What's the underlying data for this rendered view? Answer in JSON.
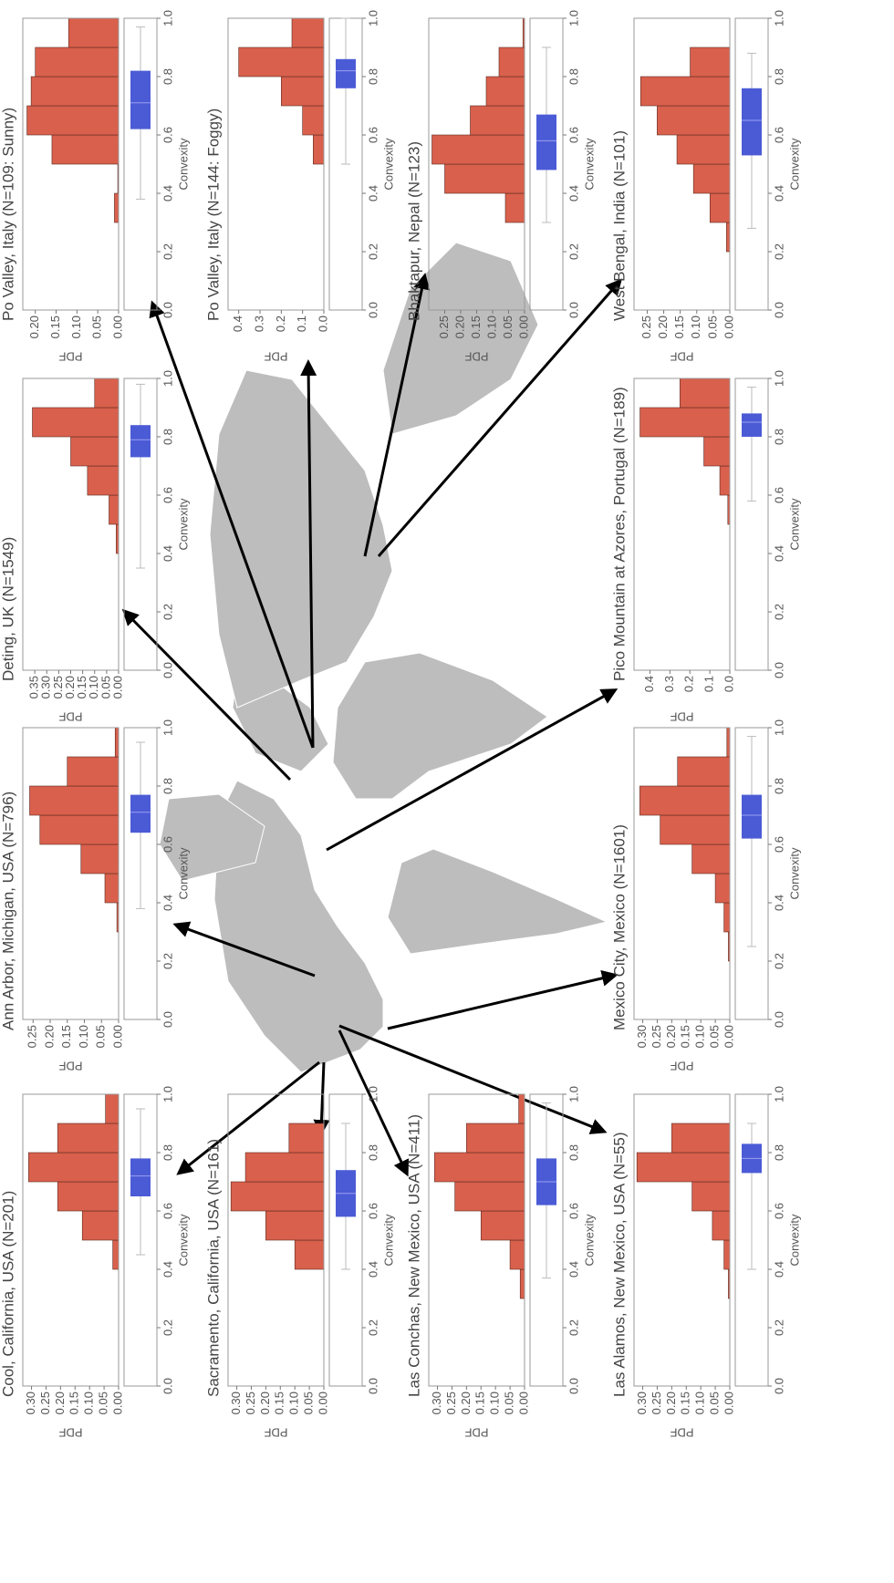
{
  "chart_data": [
    {
      "type": "histogram",
      "title": "Cool, California, USA (N=201)",
      "xlabel": "Convexity",
      "ylabel": "PDF",
      "color": "#d9604c",
      "box_color": "#4b5bd6",
      "bins": [
        0,
        0.1,
        0.2,
        0.3,
        0.4,
        0.5,
        0.6,
        0.7,
        0.8,
        0.9,
        1
      ],
      "values": [
        0,
        0,
        0,
        0,
        0.02,
        0.125,
        0.21,
        0.31,
        0.21,
        0.045
      ],
      "box": {
        "whislo": 0.45,
        "q1": 0.65,
        "med": 0.72,
        "q3": 0.78,
        "whishi": 0.95
      },
      "xlim": [
        0,
        1
      ],
      "xticks": [
        {
          "value": 0,
          "label": "0.0"
        },
        {
          "value": 0.2,
          "label": "0.2"
        },
        {
          "value": 0.4,
          "label": "0.4"
        },
        {
          "value": 0.6,
          "label": "0.6"
        },
        {
          "value": 0.8,
          "label": "0.8"
        },
        {
          "value": 1,
          "label": "1.0"
        }
      ],
      "ylim": [
        0,
        0.33
      ],
      "yticks": [
        {
          "value": 0,
          "label": "0.00"
        },
        {
          "value": 0.05,
          "label": "0.05"
        },
        {
          "value": 0.1,
          "label": "0.10"
        },
        {
          "value": 0.15,
          "label": "0.15"
        },
        {
          "value": 0.2,
          "label": "0.20"
        },
        {
          "value": 0.25,
          "label": "0.25"
        },
        {
          "value": 0.3,
          "label": "0.30"
        }
      ]
    },
    {
      "type": "histogram",
      "title": "Ann Arbor, Michigan, USA (N=796)",
      "xlabel": "Convexity",
      "ylabel": "PDF",
      "color": "#d9604c",
      "box_color": "#4b5bd6",
      "bins": [
        0,
        0.1,
        0.2,
        0.3,
        0.4,
        0.5,
        0.6,
        0.7,
        0.8,
        0.9,
        1
      ],
      "values": [
        0,
        0,
        0,
        0.005,
        0.04,
        0.11,
        0.23,
        0.26,
        0.15,
        0.01
      ],
      "box": {
        "whislo": 0.38,
        "q1": 0.64,
        "med": 0.71,
        "q3": 0.77,
        "whishi": 0.95
      },
      "xlim": [
        0,
        1
      ],
      "xticks": [
        {
          "value": 0,
          "label": "0.0"
        },
        {
          "value": 0.2,
          "label": "0.2"
        },
        {
          "value": 0.4,
          "label": "0.4"
        },
        {
          "value": 0.6,
          "label": "0.6"
        },
        {
          "value": 0.8,
          "label": "0.8"
        },
        {
          "value": 1,
          "label": "1.0"
        }
      ],
      "ylim": [
        0,
        0.28
      ],
      "yticks": [
        {
          "value": 0,
          "label": "0.00"
        },
        {
          "value": 0.05,
          "label": "0.05"
        },
        {
          "value": 0.1,
          "label": "0.10"
        },
        {
          "value": 0.15,
          "label": "0.15"
        },
        {
          "value": 0.2,
          "label": "0.20"
        },
        {
          "value": 0.25,
          "label": "0.25"
        }
      ]
    },
    {
      "type": "histogram",
      "title": "Deting, UK (N=1549)",
      "xlabel": "Convexity",
      "ylabel": "PDF",
      "color": "#d9604c",
      "box_color": "#4b5bd6",
      "bins": [
        0,
        0.1,
        0.2,
        0.3,
        0.4,
        0.5,
        0.6,
        0.7,
        0.8,
        0.9,
        1
      ],
      "values": [
        0,
        0,
        0,
        0,
        0.01,
        0.04,
        0.13,
        0.2,
        0.36,
        0.1
      ],
      "box": {
        "whislo": 0.35,
        "q1": 0.73,
        "med": 0.79,
        "q3": 0.84,
        "whishi": 0.98
      },
      "xlim": [
        0,
        1
      ],
      "xticks": [
        {
          "value": 0,
          "label": "0.0"
        },
        {
          "value": 0.2,
          "label": "0.2"
        },
        {
          "value": 0.4,
          "label": "0.4"
        },
        {
          "value": 0.6,
          "label": "0.6"
        },
        {
          "value": 0.8,
          "label": "0.8"
        },
        {
          "value": 1,
          "label": "1.0"
        }
      ],
      "ylim": [
        0,
        0.4
      ],
      "yticks": [
        {
          "value": 0,
          "label": "0.00"
        },
        {
          "value": 0.05,
          "label": "0.05"
        },
        {
          "value": 0.1,
          "label": "0.10"
        },
        {
          "value": 0.15,
          "label": "0.15"
        },
        {
          "value": 0.2,
          "label": "0.20"
        },
        {
          "value": 0.25,
          "label": "0.25"
        },
        {
          "value": 0.3,
          "label": "0.30"
        },
        {
          "value": 0.35,
          "label": "0.35"
        }
      ]
    },
    {
      "type": "histogram",
      "title": "Po Valley, Italy (N=109: Sunny)",
      "xlabel": "Convexity",
      "ylabel": "PDF",
      "color": "#d9604c",
      "box_color": "#4b5bd6",
      "bins": [
        0,
        0.1,
        0.2,
        0.3,
        0.4,
        0.5,
        0.6,
        0.7,
        0.8,
        0.9,
        1
      ],
      "values": [
        0,
        0,
        0,
        0.01,
        0.002,
        0.16,
        0.22,
        0.21,
        0.2,
        0.12
      ],
      "box": {
        "whislo": 0.38,
        "q1": 0.62,
        "med": 0.71,
        "q3": 0.82,
        "whishi": 0.97
      },
      "xlim": [
        0,
        1
      ],
      "xticks": [
        {
          "value": 0,
          "label": "0.0"
        },
        {
          "value": 0.2,
          "label": "0.2"
        },
        {
          "value": 0.4,
          "label": "0.4"
        },
        {
          "value": 0.6,
          "label": "0.6"
        },
        {
          "value": 0.8,
          "label": "0.8"
        },
        {
          "value": 1,
          "label": "1.0"
        }
      ],
      "ylim": [
        0,
        0.23
      ],
      "yticks": [
        {
          "value": 0,
          "label": "0.00"
        },
        {
          "value": 0.05,
          "label": "0.05"
        },
        {
          "value": 0.1,
          "label": "0.10"
        },
        {
          "value": 0.15,
          "label": "0.15"
        },
        {
          "value": 0.2,
          "label": "0.20"
        }
      ]
    },
    {
      "type": "histogram",
      "title": "Sacramento, California, USA (N=161)",
      "xlabel": "Convexity",
      "ylabel": "PDF",
      "color": "#d9604c",
      "box_color": "#4b5bd6",
      "bins": [
        0,
        0.1,
        0.2,
        0.3,
        0.4,
        0.5,
        0.6,
        0.7,
        0.8,
        0.9,
        1
      ],
      "values": [
        0,
        0,
        0,
        0,
        0.1,
        0.2,
        0.32,
        0.27,
        0.12,
        0
      ],
      "box": {
        "whislo": 0.4,
        "q1": 0.58,
        "med": 0.66,
        "q3": 0.74,
        "whishi": 0.9
      },
      "xlim": [
        0,
        1
      ],
      "xticks": [
        {
          "value": 0,
          "label": "0.0"
        },
        {
          "value": 0.2,
          "label": "0.2"
        },
        {
          "value": 0.4,
          "label": "0.4"
        },
        {
          "value": 0.6,
          "label": "0.6"
        },
        {
          "value": 0.8,
          "label": "0.8"
        },
        {
          "value": 1,
          "label": "1.0"
        }
      ],
      "ylim": [
        0,
        0.33
      ],
      "yticks": [
        {
          "value": 0,
          "label": "0.00"
        },
        {
          "value": 0.05,
          "label": "0.05"
        },
        {
          "value": 0.1,
          "label": "0.10"
        },
        {
          "value": 0.15,
          "label": "0.15"
        },
        {
          "value": 0.2,
          "label": "0.20"
        },
        {
          "value": 0.25,
          "label": "0.25"
        },
        {
          "value": 0.3,
          "label": "0.30"
        }
      ]
    },
    {
      "type": "histogram",
      "title": "Po Valley, Italy (N=144: Foggy)",
      "xlabel": "Convexity",
      "ylabel": "PDF",
      "color": "#d9604c",
      "box_color": "#4b5bd6",
      "bins": [
        0,
        0.1,
        0.2,
        0.3,
        0.4,
        0.5,
        0.6,
        0.7,
        0.8,
        0.9,
        1
      ],
      "values": [
        0,
        0,
        0,
        0,
        0,
        0.05,
        0.1,
        0.2,
        0.4,
        0.15
      ],
      "box": {
        "whislo": 0.5,
        "q1": 0.76,
        "med": 0.82,
        "q3": 0.86,
        "whishi": 1
      },
      "xlim": [
        0,
        1
      ],
      "xticks": [
        {
          "value": 0,
          "label": "0.0"
        },
        {
          "value": 0.2,
          "label": "0.2"
        },
        {
          "value": 0.4,
          "label": "0.4"
        },
        {
          "value": 0.6,
          "label": "0.6"
        },
        {
          "value": 0.8,
          "label": "0.8"
        },
        {
          "value": 1,
          "label": "1.0"
        }
      ],
      "ylim": [
        0,
        0.45
      ],
      "yticks": [
        {
          "value": 0,
          "label": "0.0"
        },
        {
          "value": 0.1,
          "label": "0.1"
        },
        {
          "value": 0.2,
          "label": "0.2"
        },
        {
          "value": 0.3,
          "label": "0.3"
        },
        {
          "value": 0.4,
          "label": "0.4"
        }
      ]
    },
    {
      "type": "histogram",
      "title": "Las Conchas, New Mexico, USA (N=411)",
      "xlabel": "Convexity",
      "ylabel": "PDF",
      "color": "#d9604c",
      "box_color": "#4b5bd6",
      "bins": [
        0,
        0.1,
        0.2,
        0.3,
        0.4,
        0.5,
        0.6,
        0.7,
        0.8,
        0.9,
        1
      ],
      "values": [
        0,
        0,
        0,
        0.015,
        0.05,
        0.15,
        0.24,
        0.31,
        0.2,
        0.02
      ],
      "box": {
        "whislo": 0.37,
        "q1": 0.62,
        "med": 0.7,
        "q3": 0.78,
        "whishi": 0.97
      },
      "xlim": [
        0,
        1
      ],
      "xticks": [
        {
          "value": 0,
          "label": "0.0"
        },
        {
          "value": 0.2,
          "label": "0.2"
        },
        {
          "value": 0.4,
          "label": "0.4"
        },
        {
          "value": 0.6,
          "label": "0.6"
        },
        {
          "value": 0.8,
          "label": "0.8"
        },
        {
          "value": 1,
          "label": "1.0"
        }
      ],
      "ylim": [
        0,
        0.33
      ],
      "yticks": [
        {
          "value": 0,
          "label": "0.00"
        },
        {
          "value": 0.05,
          "label": "0.05"
        },
        {
          "value": 0.1,
          "label": "0.10"
        },
        {
          "value": 0.15,
          "label": "0.15"
        },
        {
          "value": 0.2,
          "label": "0.20"
        },
        {
          "value": 0.25,
          "label": "0.25"
        },
        {
          "value": 0.3,
          "label": "0.30"
        }
      ]
    },
    {
      "type": "histogram",
      "title": "Bhaktapur, Nepal (N=123)",
      "xlabel": "Convexity",
      "ylabel": "PDF",
      "color": "#d9604c",
      "box_color": "#4b5bd6",
      "bins": [
        0,
        0.1,
        0.2,
        0.3,
        0.4,
        0.5,
        0.6,
        0.7,
        0.8,
        0.9,
        1
      ],
      "values": [
        0,
        0,
        0,
        0.06,
        0.25,
        0.29,
        0.17,
        0.12,
        0.08,
        0.005
      ],
      "box": {
        "whislo": 0.3,
        "q1": 0.48,
        "med": 0.58,
        "q3": 0.67,
        "whishi": 0.9
      },
      "xlim": [
        0,
        1
      ],
      "xticks": [
        {
          "value": 0,
          "label": "0.0"
        },
        {
          "value": 0.2,
          "label": "0.2"
        },
        {
          "value": 0.4,
          "label": "0.4"
        },
        {
          "value": 0.6,
          "label": "0.6"
        },
        {
          "value": 0.8,
          "label": "0.8"
        },
        {
          "value": 1,
          "label": "1.0"
        }
      ],
      "ylim": [
        0,
        0.3
      ],
      "yticks": [
        {
          "value": 0,
          "label": "0.00"
        },
        {
          "value": 0.05,
          "label": "0.05"
        },
        {
          "value": 0.1,
          "label": "0.10"
        },
        {
          "value": 0.15,
          "label": "0.15"
        },
        {
          "value": 0.2,
          "label": "0.20"
        },
        {
          "value": 0.25,
          "label": "0.25"
        }
      ]
    },
    {
      "type": "histogram",
      "title": "Las Alamos, New Mexico, USA (N=55)",
      "xlabel": "Convexity",
      "ylabel": "PDF",
      "color": "#d9604c",
      "box_color": "#4b5bd6",
      "bins": [
        0,
        0.1,
        0.2,
        0.3,
        0.4,
        0.5,
        0.6,
        0.7,
        0.8,
        0.9,
        1
      ],
      "values": [
        0,
        0,
        0,
        0.005,
        0.02,
        0.06,
        0.13,
        0.32,
        0.2,
        0
      ],
      "box": {
        "whislo": 0.4,
        "q1": 0.73,
        "med": 0.78,
        "q3": 0.83,
        "whishi": 0.9
      },
      "xlim": [
        0,
        1
      ],
      "xticks": [
        {
          "value": 0,
          "label": "0.0"
        },
        {
          "value": 0.2,
          "label": "0.2"
        },
        {
          "value": 0.4,
          "label": "0.4"
        },
        {
          "value": 0.6,
          "label": "0.6"
        },
        {
          "value": 0.8,
          "label": "0.8"
        },
        {
          "value": 1,
          "label": "1.0"
        }
      ],
      "ylim": [
        0,
        0.33
      ],
      "yticks": [
        {
          "value": 0,
          "label": "0.00"
        },
        {
          "value": 0.05,
          "label": "0.05"
        },
        {
          "value": 0.1,
          "label": "0.10"
        },
        {
          "value": 0.15,
          "label": "0.15"
        },
        {
          "value": 0.2,
          "label": "0.20"
        },
        {
          "value": 0.25,
          "label": "0.25"
        },
        {
          "value": 0.3,
          "label": "0.30"
        }
      ]
    },
    {
      "type": "histogram",
      "title": "Mexico City, Mexico (N=1601)",
      "xlabel": "Convexity",
      "ylabel": "PDF",
      "color": "#d9604c",
      "box_color": "#4b5bd6",
      "bins": [
        0,
        0.1,
        0.2,
        0.3,
        0.4,
        0.5,
        0.6,
        0.7,
        0.8,
        0.9,
        1
      ],
      "values": [
        0,
        0,
        0.005,
        0.02,
        0.05,
        0.13,
        0.24,
        0.31,
        0.18,
        0.01
      ],
      "box": {
        "whislo": 0.25,
        "q1": 0.62,
        "med": 0.7,
        "q3": 0.77,
        "whishi": 0.97
      },
      "xlim": [
        0,
        1
      ],
      "xticks": [
        {
          "value": 0,
          "label": "0.0"
        },
        {
          "value": 0.2,
          "label": "0.2"
        },
        {
          "value": 0.4,
          "label": "0.4"
        },
        {
          "value": 0.6,
          "label": "0.6"
        },
        {
          "value": 0.8,
          "label": "0.8"
        },
        {
          "value": 1,
          "label": "1.0"
        }
      ],
      "ylim": [
        0,
        0.33
      ],
      "yticks": [
        {
          "value": 0,
          "label": "0.00"
        },
        {
          "value": 0.05,
          "label": "0.05"
        },
        {
          "value": 0.1,
          "label": "0.10"
        },
        {
          "value": 0.15,
          "label": "0.15"
        },
        {
          "value": 0.2,
          "label": "0.20"
        },
        {
          "value": 0.25,
          "label": "0.25"
        },
        {
          "value": 0.3,
          "label": "0.30"
        }
      ]
    },
    {
      "type": "histogram",
      "title": "Pico Mountain at Azores, Portugal (N=189)",
      "xlabel": "Convexity",
      "ylabel": "PDF",
      "color": "#d9604c",
      "box_color": "#4b5bd6",
      "bins": [
        0,
        0.1,
        0.2,
        0.3,
        0.4,
        0.5,
        0.6,
        0.7,
        0.8,
        0.9,
        1
      ],
      "values": [
        0,
        0,
        0,
        0,
        0,
        0.01,
        0.05,
        0.13,
        0.45,
        0.25
      ],
      "box": {
        "whislo": 0.58,
        "q1": 0.8,
        "med": 0.85,
        "q3": 0.88,
        "whishi": 0.97
      },
      "xlim": [
        0,
        1
      ],
      "xticks": [
        {
          "value": 0,
          "label": "0.0"
        },
        {
          "value": 0.2,
          "label": "0.2"
        },
        {
          "value": 0.4,
          "label": "0.4"
        },
        {
          "value": 0.6,
          "label": "0.6"
        },
        {
          "value": 0.8,
          "label": "0.8"
        },
        {
          "value": 1,
          "label": "1.0"
        }
      ],
      "ylim": [
        0,
        0.48
      ],
      "yticks": [
        {
          "value": 0,
          "label": "0.0"
        },
        {
          "value": 0.1,
          "label": "0.1"
        },
        {
          "value": 0.2,
          "label": "0.2"
        },
        {
          "value": 0.3,
          "label": "0.3"
        },
        {
          "value": 0.4,
          "label": "0.4"
        }
      ]
    },
    {
      "type": "histogram",
      "title": "West Bengal, India (N=101)",
      "xlabel": "Convexity",
      "ylabel": "PDF",
      "color": "#d9604c",
      "box_color": "#4b5bd6",
      "bins": [
        0,
        0.1,
        0.2,
        0.3,
        0.4,
        0.5,
        0.6,
        0.7,
        0.8,
        0.9,
        1
      ],
      "values": [
        0,
        0,
        0.01,
        0.06,
        0.11,
        0.16,
        0.22,
        0.27,
        0.12,
        0
      ],
      "box": {
        "whislo": 0.28,
        "q1": 0.53,
        "med": 0.65,
        "q3": 0.76,
        "whishi": 0.88
      },
      "xlim": [
        0,
        1
      ],
      "xticks": [
        {
          "value": 0,
          "label": "0.0"
        },
        {
          "value": 0.2,
          "label": "0.2"
        },
        {
          "value": 0.4,
          "label": "0.4"
        },
        {
          "value": 0.6,
          "label": "0.6"
        },
        {
          "value": 0.8,
          "label": "0.8"
        },
        {
          "value": 1,
          "label": "1.0"
        }
      ],
      "ylim": [
        0,
        0.29
      ],
      "yticks": [
        {
          "value": 0,
          "label": "0.00"
        },
        {
          "value": 0.05,
          "label": "0.05"
        },
        {
          "value": 0.1,
          "label": "0.10"
        },
        {
          "value": 0.15,
          "label": "0.15"
        },
        {
          "value": 0.2,
          "label": "0.20"
        },
        {
          "value": 0.25,
          "label": "0.25"
        }
      ]
    }
  ]
}
